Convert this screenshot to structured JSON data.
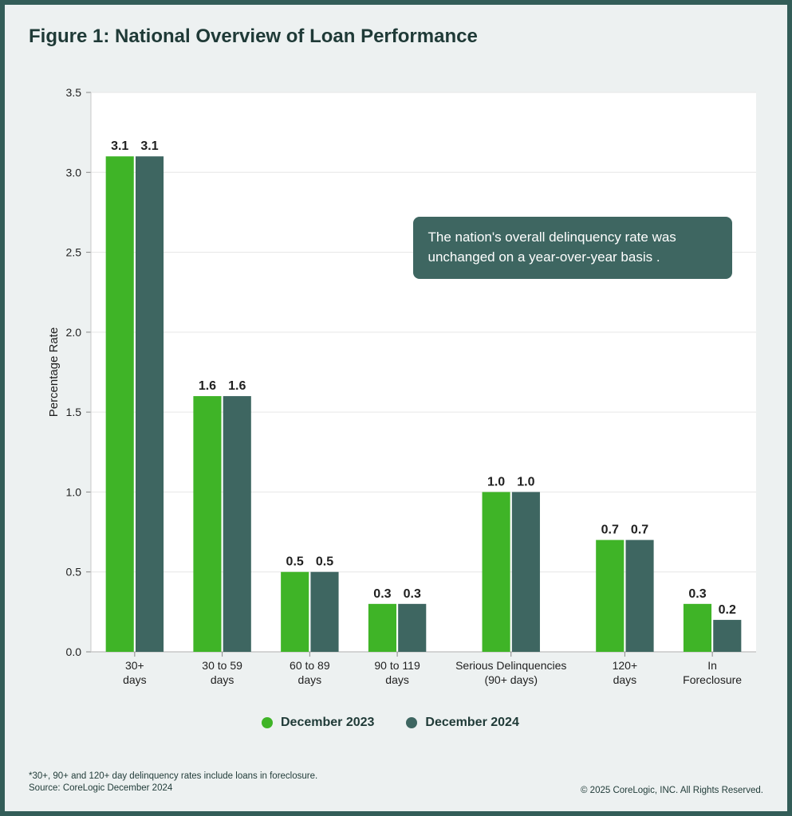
{
  "title": "Figure 1: National Overview of Loan Performance",
  "chart": {
    "type": "grouped-bar",
    "background_color": "#ffffff",
    "frame_bg": "#edf1f1",
    "border_color": "#335d58",
    "y_axis": {
      "label": "Percentage Rate",
      "ylim": [
        0.0,
        3.5
      ],
      "tick_step": 0.5,
      "ticks": [
        "0.0",
        "0.5",
        "1.0",
        "1.5",
        "2.0",
        "2.5",
        "3.0",
        "3.5"
      ],
      "tick_fontsize": 14,
      "label_fontsize": 15
    },
    "categories": [
      {
        "lines": [
          "30+",
          "days"
        ]
      },
      {
        "lines": [
          "30 to 59",
          "days"
        ]
      },
      {
        "lines": [
          "60 to 89",
          "days"
        ]
      },
      {
        "lines": [
          "90 to 119",
          "days"
        ]
      },
      {
        "lines": [
          "Serious Delinquencies",
          "(90+ days)"
        ],
        "wide": true
      },
      {
        "lines": [
          "120+",
          "days"
        ]
      },
      {
        "lines": [
          "In",
          "Foreclosure"
        ]
      }
    ],
    "series": [
      {
        "name": "December 2023",
        "color": "#3fb427",
        "values": [
          3.1,
          1.6,
          0.5,
          0.3,
          1.0,
          0.7,
          0.3
        ],
        "labels": [
          "3.1",
          "1.6",
          "0.5",
          "0.3",
          "1.0",
          "0.7",
          "0.3"
        ]
      },
      {
        "name": "December 2024",
        "color": "#3e6661",
        "values": [
          3.1,
          1.6,
          0.5,
          0.3,
          1.0,
          0.7,
          0.2
        ],
        "labels": [
          "3.1",
          "1.6",
          "0.5",
          "0.3",
          "1.0",
          "0.7",
          "0.2"
        ]
      }
    ],
    "bar_width": 0.32,
    "bar_gap": 0.02,
    "grid_color": "#e6e6e6",
    "baseline_color": "#c8c8c8",
    "bar_label_fontsize": 16
  },
  "annotation": {
    "text": "The nation's overall delinquency rate was unchanged on a year-over-year basis .",
    "bg": "#3e6661",
    "fg": "#ffffff",
    "fontsize": 17
  },
  "legend": {
    "items": [
      {
        "label": "December 2023",
        "color": "#3fb427"
      },
      {
        "label": "December 2024",
        "color": "#3e6661"
      }
    ]
  },
  "footnote": "*30+, 90+ and 120+ day delinquency rates include loans in foreclosure.\nSource: CoreLogic December 2024",
  "copyright": "© 2025 CoreLogic, INC. All Rights Reserved."
}
